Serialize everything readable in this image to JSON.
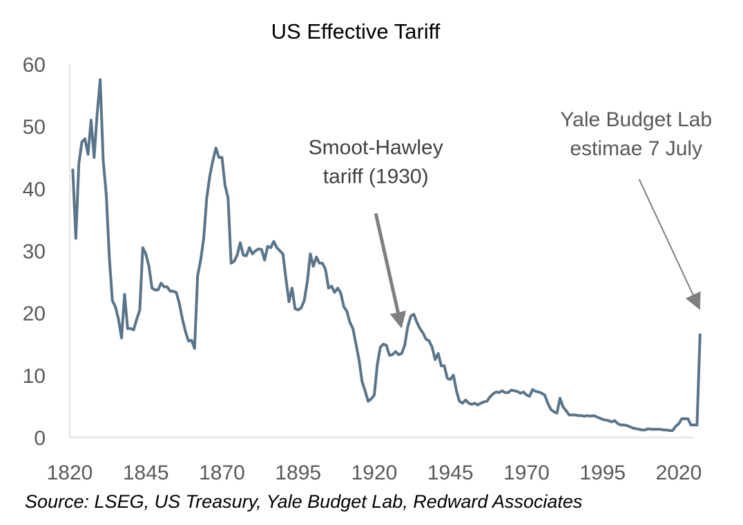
{
  "chart_data": {
    "type": "line",
    "title": "US Effective Tariff",
    "xlabel": "",
    "ylabel": "",
    "xlim": [
      1820,
      2025
    ],
    "ylim": [
      0,
      60
    ],
    "x_ticks": [
      "1820",
      "1845",
      "1870",
      "1895",
      "1920",
      "1945",
      "1970",
      "1995",
      "2020"
    ],
    "y_ticks": [
      "0",
      "10",
      "20",
      "30",
      "40",
      "50",
      "60"
    ],
    "grid": false,
    "legend": "none",
    "series": [
      {
        "color": "#5A7489",
        "points": [
          [
            1821,
            43
          ],
          [
            1822,
            32
          ],
          [
            1823,
            44
          ],
          [
            1824,
            47.5
          ],
          [
            1825,
            48
          ],
          [
            1826,
            45.5
          ],
          [
            1827,
            51
          ],
          [
            1828,
            45
          ],
          [
            1829,
            52
          ],
          [
            1830,
            57.5
          ],
          [
            1831,
            44.5
          ],
          [
            1832,
            39
          ],
          [
            1833,
            29
          ],
          [
            1834,
            22
          ],
          [
            1835,
            21
          ],
          [
            1836,
            19
          ],
          [
            1837,
            16
          ],
          [
            1838,
            23
          ],
          [
            1839,
            17.5
          ],
          [
            1840,
            17.5
          ],
          [
            1841,
            17.3
          ],
          [
            1842,
            19
          ],
          [
            1843,
            20.5
          ],
          [
            1844,
            30.5
          ],
          [
            1845,
            29.5
          ],
          [
            1846,
            27.5
          ],
          [
            1847,
            24
          ],
          [
            1848,
            23.7
          ],
          [
            1849,
            23.7
          ],
          [
            1850,
            24.8
          ],
          [
            1851,
            24.2
          ],
          [
            1852,
            24.2
          ],
          [
            1853,
            23.5
          ],
          [
            1854,
            23.5
          ],
          [
            1855,
            23.3
          ],
          [
            1856,
            21.5
          ],
          [
            1857,
            19
          ],
          [
            1858,
            17
          ],
          [
            1859,
            15.5
          ],
          [
            1860,
            15.6
          ],
          [
            1861,
            14.3
          ],
          [
            1862,
            26
          ],
          [
            1863,
            28.5
          ],
          [
            1864,
            32
          ],
          [
            1865,
            38.5
          ],
          [
            1866,
            42
          ],
          [
            1867,
            44.5
          ],
          [
            1868,
            46.5
          ],
          [
            1869,
            45
          ],
          [
            1870,
            45
          ],
          [
            1871,
            40.5
          ],
          [
            1872,
            38.5
          ],
          [
            1873,
            28
          ],
          [
            1874,
            28.3
          ],
          [
            1875,
            29.3
          ],
          [
            1876,
            31.3
          ],
          [
            1877,
            29.3
          ],
          [
            1878,
            29.2
          ],
          [
            1879,
            30.5
          ],
          [
            1880,
            29.5
          ],
          [
            1881,
            30
          ],
          [
            1882,
            30.3
          ],
          [
            1883,
            30.2
          ],
          [
            1884,
            28.5
          ],
          [
            1885,
            30.7
          ],
          [
            1886,
            30.5
          ],
          [
            1887,
            31.5
          ],
          [
            1888,
            30.5
          ],
          [
            1889,
            30
          ],
          [
            1890,
            29.5
          ],
          [
            1891,
            25.5
          ],
          [
            1892,
            21.8
          ],
          [
            1893,
            24
          ],
          [
            1894,
            20.7
          ],
          [
            1895,
            20.5
          ],
          [
            1896,
            20.8
          ],
          [
            1897,
            22
          ],
          [
            1898,
            25
          ],
          [
            1899,
            29.5
          ],
          [
            1900,
            27.5
          ],
          [
            1901,
            29
          ],
          [
            1902,
            28
          ],
          [
            1903,
            28
          ],
          [
            1904,
            27
          ],
          [
            1905,
            24
          ],
          [
            1906,
            24.3
          ],
          [
            1907,
            23.3
          ],
          [
            1908,
            24
          ],
          [
            1909,
            23.2
          ],
          [
            1910,
            21
          ],
          [
            1911,
            20.3
          ],
          [
            1912,
            18.5
          ],
          [
            1913,
            17.5
          ],
          [
            1914,
            15
          ],
          [
            1915,
            12.5
          ],
          [
            1916,
            9
          ],
          [
            1917,
            7.5
          ],
          [
            1918,
            5.8
          ],
          [
            1919,
            6.2
          ],
          [
            1920,
            6.8
          ],
          [
            1921,
            11.7
          ],
          [
            1922,
            14.5
          ],
          [
            1923,
            15
          ],
          [
            1924,
            14.8
          ],
          [
            1925,
            13.2
          ],
          [
            1926,
            13.3
          ],
          [
            1927,
            13.8
          ],
          [
            1928,
            13.3
          ],
          [
            1929,
            13.5
          ],
          [
            1930,
            14.8
          ],
          [
            1931,
            17.8
          ],
          [
            1932,
            19.5
          ],
          [
            1933,
            19.8
          ],
          [
            1934,
            18.5
          ],
          [
            1935,
            17.5
          ],
          [
            1936,
            16.8
          ],
          [
            1937,
            15.8
          ],
          [
            1938,
            15.5
          ],
          [
            1939,
            14.5
          ],
          [
            1940,
            12.5
          ],
          [
            1941,
            13.5
          ],
          [
            1942,
            11.5
          ],
          [
            1943,
            11.5
          ],
          [
            1944,
            9.5
          ],
          [
            1945,
            9.3
          ],
          [
            1946,
            10
          ],
          [
            1947,
            7.5
          ],
          [
            1948,
            5.8
          ],
          [
            1949,
            5.5
          ],
          [
            1950,
            6
          ],
          [
            1951,
            5.5
          ],
          [
            1952,
            5.3
          ],
          [
            1953,
            5.5
          ],
          [
            1954,
            5.2
          ],
          [
            1955,
            5.5
          ],
          [
            1956,
            5.7
          ],
          [
            1957,
            5.8
          ],
          [
            1958,
            6.5
          ],
          [
            1959,
            7
          ],
          [
            1960,
            7.3
          ],
          [
            1961,
            7.2
          ],
          [
            1962,
            7.5
          ],
          [
            1963,
            7.2
          ],
          [
            1964,
            7.2
          ],
          [
            1965,
            7.6
          ],
          [
            1966,
            7.5
          ],
          [
            1967,
            7.4
          ],
          [
            1968,
            7.1
          ],
          [
            1969,
            7.3
          ],
          [
            1970,
            6.8
          ],
          [
            1971,
            6.6
          ],
          [
            1972,
            7.7
          ],
          [
            1973,
            7.4
          ],
          [
            1974,
            7.3
          ],
          [
            1975,
            7.1
          ],
          [
            1976,
            6.8
          ],
          [
            1977,
            5.5
          ],
          [
            1978,
            4.5
          ],
          [
            1979,
            4.1
          ],
          [
            1980,
            3.9
          ],
          [
            1981,
            6.3
          ],
          [
            1982,
            4.9
          ],
          [
            1983,
            4.3
          ],
          [
            1984,
            3.6
          ],
          [
            1985,
            3.6
          ],
          [
            1986,
            3.6
          ],
          [
            1987,
            3.5
          ],
          [
            1988,
            3.5
          ],
          [
            1989,
            3.4
          ],
          [
            1990,
            3.5
          ],
          [
            1991,
            3.4
          ],
          [
            1992,
            3.5
          ],
          [
            1993,
            3.3
          ],
          [
            1994,
            3.1
          ],
          [
            1995,
            2.9
          ],
          [
            1996,
            2.8
          ],
          [
            1997,
            2.7
          ],
          [
            1998,
            2.5
          ],
          [
            1999,
            2.7
          ],
          [
            2000,
            2.2
          ],
          [
            2001,
            2
          ],
          [
            2002,
            2
          ],
          [
            2003,
            1.9
          ],
          [
            2004,
            1.7
          ],
          [
            2005,
            1.5
          ],
          [
            2006,
            1.4
          ],
          [
            2007,
            1.3
          ],
          [
            2008,
            1.2
          ],
          [
            2009,
            1.2
          ],
          [
            2010,
            1.4
          ],
          [
            2011,
            1.3
          ],
          [
            2012,
            1.3
          ],
          [
            2013,
            1.3
          ],
          [
            2014,
            1.3
          ],
          [
            2015,
            1.2
          ],
          [
            2016,
            1.2
          ],
          [
            2017,
            1.1
          ],
          [
            2018,
            1.1
          ],
          [
            2019,
            1.8
          ],
          [
            2020,
            2.2
          ],
          [
            2021,
            3
          ],
          [
            2022,
            3
          ],
          [
            2023,
            3
          ],
          [
            2024,
            2
          ],
          [
            2025,
            2
          ],
          [
            2026,
            2
          ],
          [
            2027,
            16.5
          ]
        ]
      }
    ],
    "annotations": [
      {
        "lines": [
          "Smoot-Hawley",
          "tariff (1930)"
        ],
        "bold": false,
        "color": "#404040",
        "text_at": [
          1920.5,
          45.5
        ],
        "arrow_from": [
          1920.5,
          36
        ],
        "arrow_to": [
          1929,
          17.5
        ]
      },
      {
        "lines": [
          "Yale Budget Lab",
          "estimae 7 July"
        ],
        "bold": false,
        "color": "#595959",
        "text_at": [
          2006,
          50
        ],
        "arrow_from": [
          2007,
          41.5
        ],
        "arrow_to": [
          2027,
          20.5
        ]
      }
    ],
    "arrow_color": "#7f7f7f"
  },
  "source": "Source: LSEG, US Treasury, Yale Budget Lab, Redward Associates"
}
